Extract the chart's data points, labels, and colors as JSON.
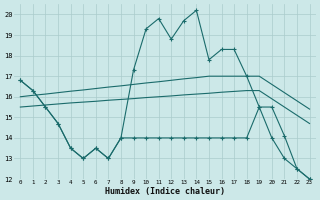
{
  "xlabel": "Humidex (Indice chaleur)",
  "background_color": "#cce8e8",
  "grid_color": "#aacccc",
  "line_color": "#1a6b6b",
  "xlim_min": -0.5,
  "xlim_max": 23.5,
  "ylim_min": 12,
  "ylim_max": 20.5,
  "xticks": [
    0,
    1,
    2,
    3,
    4,
    5,
    6,
    7,
    8,
    9,
    10,
    11,
    12,
    13,
    14,
    15,
    16,
    17,
    18,
    19,
    20,
    21,
    22,
    23
  ],
  "yticks": [
    12,
    13,
    14,
    15,
    16,
    17,
    18,
    19,
    20
  ],
  "x": [
    0,
    1,
    2,
    3,
    4,
    5,
    6,
    7,
    8,
    9,
    10,
    11,
    12,
    13,
    14,
    15,
    16,
    17,
    18,
    19,
    20,
    21,
    22,
    23
  ],
  "line_max": [
    16.8,
    16.3,
    15.5,
    14.7,
    13.5,
    13.0,
    13.5,
    13.0,
    14.0,
    17.3,
    19.3,
    19.8,
    18.8,
    19.7,
    20.2,
    17.8,
    18.3,
    18.3,
    17.0,
    15.5,
    14.0,
    13.0,
    12.5,
    12.0
  ],
  "line_avg_upper": [
    16.0,
    16.07,
    16.13,
    16.2,
    16.27,
    16.33,
    16.4,
    16.47,
    16.53,
    16.6,
    16.67,
    16.73,
    16.8,
    16.87,
    16.93,
    17.0,
    17.0,
    17.0,
    17.0,
    17.0,
    16.6,
    16.2,
    15.8,
    15.4
  ],
  "line_avg_lower": [
    15.5,
    15.55,
    15.6,
    15.65,
    15.7,
    15.74,
    15.78,
    15.83,
    15.87,
    15.91,
    15.96,
    16.0,
    16.04,
    16.09,
    16.13,
    16.17,
    16.22,
    16.26,
    16.3,
    16.3,
    15.9,
    15.5,
    15.1,
    14.7
  ],
  "line_min": [
    16.8,
    16.3,
    15.5,
    14.7,
    13.5,
    13.0,
    13.5,
    13.0,
    14.0,
    14.0,
    14.0,
    14.0,
    14.0,
    14.0,
    14.0,
    14.0,
    14.0,
    14.0,
    14.0,
    15.5,
    15.5,
    14.1,
    12.5,
    12.0
  ]
}
